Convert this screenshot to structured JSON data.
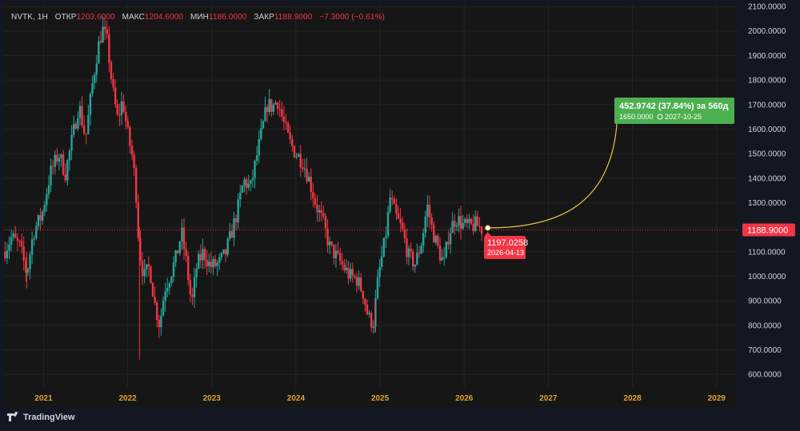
{
  "legend": {
    "symbol": "NVTK, 1H",
    "open_label": "ОТКР",
    "open_value": "1203.6000",
    "high_label": "МАКС",
    "high_value": "1204.6000",
    "low_label": "МИН",
    "low_value": "1186.0000",
    "close_label": "ЗАКР",
    "close_value": "1188.9000",
    "change": "−7.3000 (−0.61%)"
  },
  "colors": {
    "up": "#26a69a",
    "down": "#f23645",
    "projection": "#e8c64a",
    "target_box": "#4caf50",
    "price_box": "#f23645",
    "axis_year": "#e0a030"
  },
  "price_line": {
    "label": "1188.9000",
    "value": 1188.9
  },
  "start_point": {
    "value_label": "1197.0258",
    "date_label": "2026-04-13",
    "value": 1197.0258,
    "x": 2026.28
  },
  "target": {
    "change_label": "452.9742 (37.84%) за 560д",
    "price_label": "1650.0000",
    "date_label": "2027-10-25",
    "value": 1650.0,
    "x": 2027.82
  },
  "brand": "TradingView",
  "chart_data": {
    "type": "candlestick",
    "y_ticks": [
      "2100.0000",
      "2000.0000",
      "1900.0000",
      "1800.0000",
      "1700.0000",
      "1600.0000",
      "1500.0000",
      "1400.0000",
      "1300.0000",
      "1200.0000",
      "1100.0000",
      "1000.0000",
      "900.0000",
      "800.0000",
      "700.0000",
      "600.0000"
    ],
    "x_ticks": [
      "2021",
      "2022",
      "2023",
      "2024",
      "2025",
      "2026",
      "2027",
      "2028",
      "2029"
    ],
    "ylim": [
      545,
      2110
    ],
    "xlim": [
      2020.53,
      2029.25
    ],
    "grid": true,
    "price_path": [
      [
        2020.53,
        1100
      ],
      [
        2020.62,
        1160
      ],
      [
        2020.72,
        1120
      ],
      [
        2020.8,
        1010
      ],
      [
        2020.88,
        1180
      ],
      [
        2020.98,
        1250
      ],
      [
        2021.08,
        1420
      ],
      [
        2021.18,
        1500
      ],
      [
        2021.26,
        1420
      ],
      [
        2021.34,
        1560
      ],
      [
        2021.42,
        1700
      ],
      [
        2021.5,
        1560
      ],
      [
        2021.58,
        1780
      ],
      [
        2021.64,
        1920
      ],
      [
        2021.7,
        2010
      ],
      [
        2021.76,
        1950
      ],
      [
        2021.82,
        1760
      ],
      [
        2021.88,
        1640
      ],
      [
        2021.94,
        1720
      ],
      [
        2022.0,
        1580
      ],
      [
        2022.06,
        1480
      ],
      [
        2022.1,
        1340
      ],
      [
        2022.13,
        1150
      ],
      [
        2022.16,
        1050
      ],
      [
        2022.2,
        1000
      ],
      [
        2022.26,
        1040
      ],
      [
        2022.32,
        890
      ],
      [
        2022.38,
        800
      ],
      [
        2022.44,
        950
      ],
      [
        2022.5,
        1000
      ],
      [
        2022.58,
        1080
      ],
      [
        2022.64,
        1180
      ],
      [
        2022.7,
        1050
      ],
      [
        2022.76,
        880
      ],
      [
        2022.82,
        1040
      ],
      [
        2022.9,
        1100
      ],
      [
        2022.98,
        1040
      ],
      [
        2023.08,
        1050
      ],
      [
        2023.16,
        1090
      ],
      [
        2023.22,
        1160
      ],
      [
        2023.3,
        1260
      ],
      [
        2023.38,
        1390
      ],
      [
        2023.46,
        1360
      ],
      [
        2023.54,
        1500
      ],
      [
        2023.6,
        1600
      ],
      [
        2023.66,
        1700
      ],
      [
        2023.72,
        1690
      ],
      [
        2023.78,
        1720
      ],
      [
        2023.84,
        1640
      ],
      [
        2023.92,
        1550
      ],
      [
        2024.0,
        1500
      ],
      [
        2024.08,
        1470
      ],
      [
        2024.16,
        1390
      ],
      [
        2024.24,
        1290
      ],
      [
        2024.32,
        1220
      ],
      [
        2024.4,
        1120
      ],
      [
        2024.48,
        1080
      ],
      [
        2024.56,
        1040
      ],
      [
        2024.64,
        1000
      ],
      [
        2024.72,
        990
      ],
      [
        2024.8,
        930
      ],
      [
        2024.86,
        830
      ],
      [
        2024.92,
        810
      ],
      [
        2024.98,
        1000
      ],
      [
        2025.06,
        1150
      ],
      [
        2025.12,
        1320
      ],
      [
        2025.18,
        1250
      ],
      [
        2025.26,
        1190
      ],
      [
        2025.34,
        1080
      ],
      [
        2025.42,
        1050
      ],
      [
        2025.5,
        1150
      ],
      [
        2025.56,
        1290
      ],
      [
        2025.62,
        1190
      ],
      [
        2025.7,
        1100
      ],
      [
        2025.76,
        1050
      ],
      [
        2025.82,
        1180
      ],
      [
        2025.9,
        1240
      ],
      [
        2025.98,
        1210
      ],
      [
        2026.06,
        1200
      ],
      [
        2026.14,
        1210
      ],
      [
        2026.22,
        1190
      ]
    ]
  }
}
